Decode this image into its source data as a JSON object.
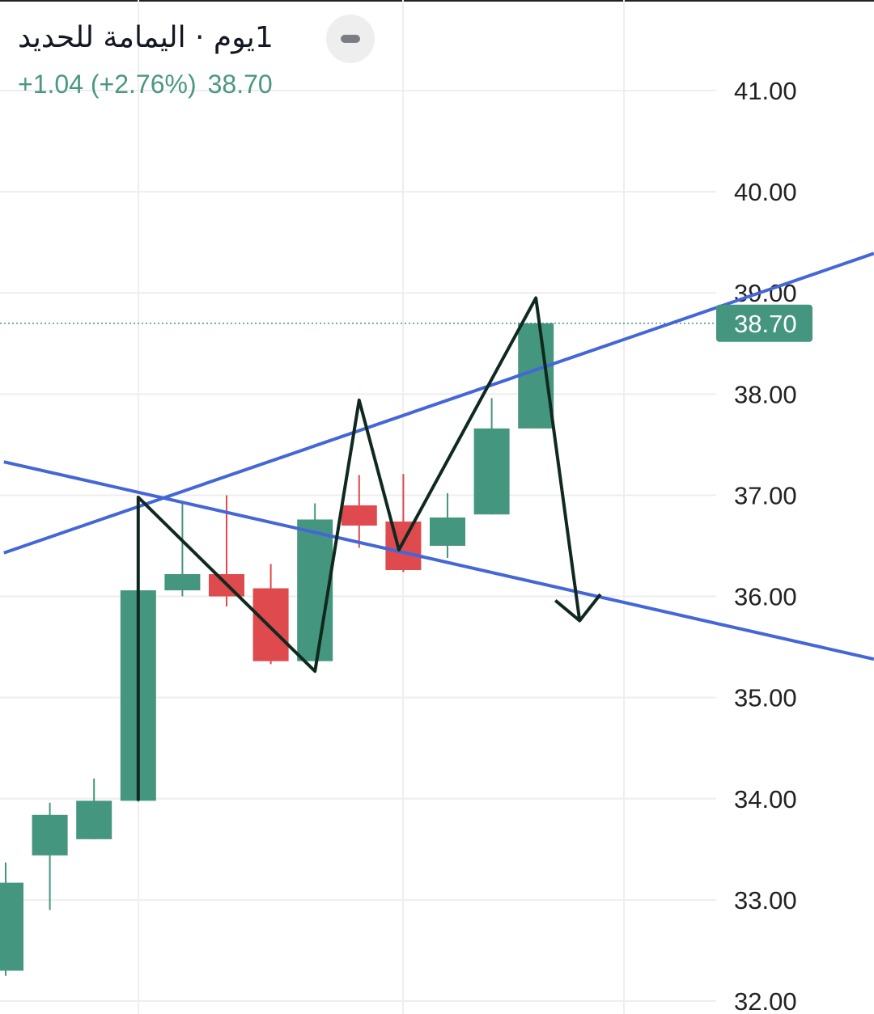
{
  "header": {
    "title": "1يوم · اليمامة للحديد",
    "change": "+1.04 (+2.76%)",
    "last_price": "38.70"
  },
  "colors": {
    "up": "#45967f",
    "down": "#df4a4f",
    "trendline": "#4466d6",
    "drawing": "#10291f",
    "grid": "#eeeeee"
  },
  "chart_data": {
    "type": "candlestick",
    "title": "1يوم · اليمامة للحديد",
    "ylim": [
      32,
      41
    ],
    "y_ticks": [
      "41.00",
      "40.00",
      "39.00",
      "38.00",
      "37.00",
      "36.00",
      "35.00",
      "34.00",
      "33.00",
      "32.00"
    ],
    "y_tick_values": [
      41,
      40,
      39,
      38,
      37,
      36,
      35,
      34,
      33,
      32
    ],
    "last_price_label": "38.70",
    "last_price": 38.7,
    "grid": true,
    "candles": [
      {
        "o": 32.3,
        "h": 33.37,
        "l": 32.25,
        "c": 33.17
      },
      {
        "o": 33.44,
        "h": 33.96,
        "l": 32.9,
        "c": 33.84
      },
      {
        "o": 33.6,
        "h": 34.2,
        "l": 33.6,
        "c": 33.98
      },
      {
        "o": 33.98,
        "h": 36.06,
        "l": 33.97,
        "c": 36.06
      },
      {
        "o": 36.06,
        "h": 36.94,
        "l": 36.0,
        "c": 36.22
      },
      {
        "o": 36.22,
        "h": 37.0,
        "l": 35.9,
        "c": 36.0
      },
      {
        "o": 36.08,
        "h": 36.32,
        "l": 35.33,
        "c": 35.36
      },
      {
        "o": 35.36,
        "h": 36.92,
        "l": 35.36,
        "c": 36.76
      },
      {
        "o": 36.9,
        "h": 37.2,
        "l": 36.48,
        "c": 36.7
      },
      {
        "o": 36.74,
        "h": 37.21,
        "l": 36.24,
        "c": 36.26
      },
      {
        "o": 36.5,
        "h": 37.02,
        "l": 36.38,
        "c": 36.78
      },
      {
        "o": 36.81,
        "h": 37.96,
        "l": 36.81,
        "c": 37.66
      },
      {
        "o": 37.66,
        "h": 38.7,
        "l": 37.66,
        "c": 38.7
      }
    ],
    "drawings": {
      "trendlines": [
        [
          [
            -0.04,
            36.43
          ],
          [
            19.65,
            39.39
          ]
        ],
        [
          [
            -0.04,
            37.33
          ],
          [
            19.65,
            35.38
          ]
        ]
      ],
      "zigzag": [
        [
          3,
          33.98
        ],
        [
          3,
          36.98
        ],
        [
          7,
          35.26
        ],
        [
          8,
          37.94
        ],
        [
          8.9,
          36.46
        ],
        [
          12,
          38.95
        ],
        [
          12.99,
          35.76
        ]
      ],
      "arrowhead": [
        [
          12.44,
          35.96
        ],
        [
          12.99,
          35.76
        ],
        [
          13.46,
          36.02
        ]
      ]
    }
  }
}
